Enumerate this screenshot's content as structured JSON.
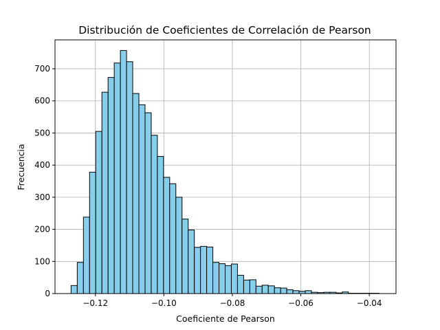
{
  "chart_data": {
    "type": "bar",
    "title": "Distribución de Coeficientes de Correlación de Pearson",
    "xlabel": "Coeficiente de Pearson",
    "ylabel": "Frecuencia",
    "bin_start": -0.1271,
    "bin_width": 0.0018,
    "values": [
      25,
      97,
      238,
      378,
      505,
      627,
      673,
      718,
      757,
      722,
      623,
      588,
      563,
      493,
      427,
      362,
      342,
      300,
      232,
      198,
      144,
      147,
      145,
      97,
      93,
      87,
      92,
      57,
      42,
      43,
      23,
      26,
      24,
      18,
      17,
      12,
      9,
      7,
      9,
      4,
      3,
      4,
      4,
      2,
      5,
      1,
      1,
      1,
      1,
      1
    ],
    "xlim": [
      -0.1318,
      -0.0322
    ],
    "ylim": [
      0,
      790
    ],
    "xticks": [
      -0.12,
      -0.1,
      -0.08,
      -0.06,
      -0.04
    ],
    "xtick_labels": [
      "−0.12",
      "−0.10",
      "−0.08",
      "−0.06",
      "−0.04"
    ],
    "yticks": [
      0,
      100,
      200,
      300,
      400,
      500,
      600,
      700
    ],
    "ytick_labels": [
      "0",
      "100",
      "200",
      "300",
      "400",
      "500",
      "600",
      "700"
    ],
    "grid": true,
    "bar_color": "#87CEEB",
    "edge_color": "#000000"
  }
}
